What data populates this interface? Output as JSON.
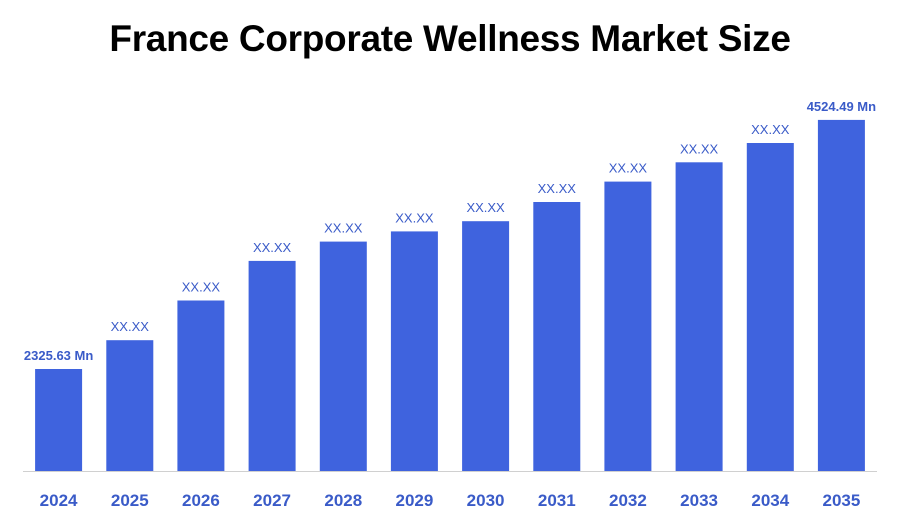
{
  "chart_data": {
    "type": "bar",
    "title": "France Corporate Wellness Market Size",
    "categories": [
      "2024",
      "2025",
      "2026",
      "2027",
      "2028",
      "2029",
      "2030",
      "2031",
      "2032",
      "2033",
      "2034",
      "2035"
    ],
    "values": [
      2325.63,
      2580,
      2930,
      3280,
      3450,
      3540,
      3630,
      3800,
      3980,
      4150,
      4320,
      4524.49
    ],
    "data_labels": [
      "2325.63 Mn",
      "XX.XX",
      "XX.XX",
      "XX.XX",
      "XX.XX",
      "XX.XX",
      "XX.XX",
      "XX.XX",
      "XX.XX",
      "XX.XX",
      "XX.XX",
      "4524.49 Mn"
    ],
    "xlabel": "",
    "ylabel": "",
    "ylim": [
      1425,
      4700
    ],
    "grid": false,
    "legend": "none",
    "bar_color": "#3f63de",
    "label_color": "#3a5bc8"
  }
}
